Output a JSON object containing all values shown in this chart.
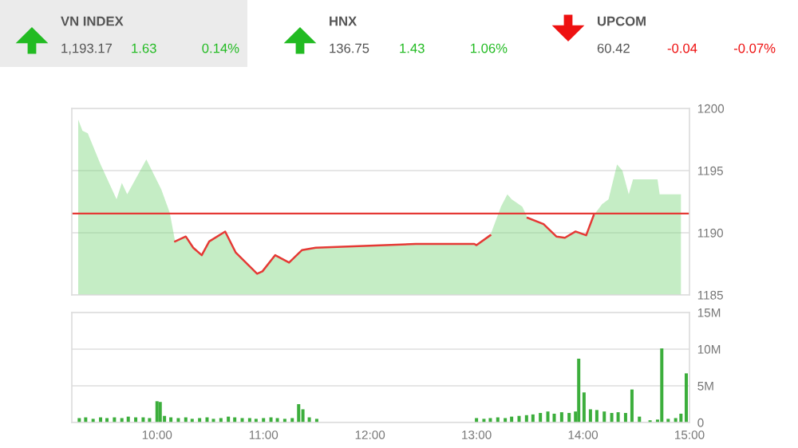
{
  "chart_data": [
    {
      "type": "other",
      "annotations": [
        "VN INDEX",
        "1,193.17",
        "1.63",
        "0.14%",
        "HNX",
        "136.75",
        "1.43",
        "1.06%",
        "UPCOM",
        "60.42",
        "-0.04",
        "-0.07%"
      ],
      "colors": [
        "#22bb22",
        "#22bb22",
        "#ee1111"
      ]
    },
    {
      "type": "area",
      "tick_labels": "y",
      "grid": "y",
      "xlim": [
        9.2,
        15.0
      ],
      "ylim": [
        1185,
        1200
      ],
      "yticks": [
        1185,
        1190,
        1195,
        1200
      ],
      "ref_lines": [
        {
          "axis": "y",
          "value": 1191.54,
          "color": "#e53935"
        }
      ],
      "series": [
        {
          "color": "#7ed67e",
          "x": [
            9.26,
            9.3,
            9.35,
            9.47,
            9.62,
            9.67,
            9.72,
            9.9,
            10.04,
            10.12,
            10.17,
            10.27,
            10.34,
            10.42,
            10.49,
            10.64,
            10.74,
            10.94,
            10.99,
            11.11,
            11.24,
            11.36,
            11.49,
            12.43,
            12.98,
            13.0,
            13.13,
            13.23,
            13.29,
            13.33,
            13.43,
            13.48,
            13.63,
            13.75,
            13.83,
            13.93,
            14.03,
            14.1,
            14.18,
            14.24,
            14.32,
            14.37,
            14.43,
            14.47,
            14.7,
            14.72,
            14.92
          ],
          "values": [
            1199.1,
            1198.2,
            1198.0,
            1195.5,
            1192.7,
            1194.0,
            1193.1,
            1195.9,
            1193.5,
            1191.6,
            1189.3,
            1189.7,
            1188.8,
            1188.2,
            1189.3,
            1190.1,
            1188.4,
            1186.7,
            1186.9,
            1188.2,
            1187.6,
            1188.6,
            1188.8,
            1189.1,
            1189.1,
            1189.0,
            1189.8,
            1192.1,
            1193.1,
            1192.7,
            1192.1,
            1191.2,
            1190.7,
            1189.7,
            1189.6,
            1190.1,
            1189.8,
            1191.4,
            1192.3,
            1192.7,
            1195.5,
            1195.0,
            1193.1,
            1194.3,
            1194.3,
            1193.1,
            1193.1
          ]
        },
        {
          "type": "line",
          "color": "#e53935",
          "x": [
            10.17,
            10.27,
            10.34,
            10.42,
            10.49,
            10.64,
            10.74,
            10.94,
            10.99,
            11.11,
            11.24,
            11.36,
            11.49,
            12.43,
            12.98,
            13.0,
            13.13,
            13.3,
            13.48,
            13.63,
            13.75,
            13.83,
            13.93,
            14.03,
            14.1
          ],
          "values": [
            1189.3,
            1189.7,
            1188.8,
            1188.2,
            1189.3,
            1190.1,
            1188.4,
            1186.7,
            1186.9,
            1188.2,
            1187.6,
            1188.6,
            1188.8,
            1189.1,
            1189.1,
            1189.0,
            1189.8,
            null,
            1191.2,
            1190.7,
            1189.7,
            1189.6,
            1190.1,
            1189.8,
            1191.4
          ]
        }
      ]
    },
    {
      "type": "bar",
      "grid": "y",
      "xlim": [
        9.2,
        15.0
      ],
      "ylim": [
        0,
        15
      ],
      "yticks": [
        {
          "value": 0,
          "label": "0"
        },
        {
          "value": 5,
          "label": "5M"
        },
        {
          "value": 10,
          "label": "10M"
        },
        {
          "value": 15,
          "label": "15M"
        }
      ],
      "xticks": [
        {
          "value": 10,
          "label": "10:00"
        },
        {
          "value": 11,
          "label": "11:00"
        },
        {
          "value": 12,
          "label": "12:00"
        },
        {
          "value": 13,
          "label": "13:00"
        },
        {
          "value": 14,
          "label": "14:00"
        },
        {
          "value": 15,
          "label": "15:00"
        }
      ],
      "series": [
        {
          "color": "#3cae3c",
          "x": [
            9.27,
            9.33,
            9.4,
            9.47,
            9.53,
            9.6,
            9.67,
            9.73,
            9.8,
            9.87,
            9.93,
            10.0,
            10.03,
            10.07,
            10.13,
            10.2,
            10.27,
            10.33,
            10.4,
            10.47,
            10.53,
            10.6,
            10.67,
            10.73,
            10.8,
            10.87,
            10.93,
            11.0,
            11.07,
            11.13,
            11.2,
            11.27,
            11.33,
            11.37,
            11.43,
            11.5,
            13.0,
            13.07,
            13.13,
            13.2,
            13.27,
            13.33,
            13.4,
            13.47,
            13.53,
            13.6,
            13.67,
            13.73,
            13.8,
            13.87,
            13.93,
            13.96,
            14.01,
            14.07,
            14.13,
            14.2,
            14.27,
            14.33,
            14.4,
            14.46,
            14.53,
            14.63,
            14.7,
            14.74,
            14.8,
            14.87,
            14.92,
            14.97
          ],
          "values": [
            0.6,
            0.7,
            0.5,
            0.7,
            0.6,
            0.7,
            0.6,
            0.8,
            0.7,
            0.7,
            0.6,
            2.9,
            2.8,
            0.9,
            0.7,
            0.6,
            0.7,
            0.5,
            0.6,
            0.7,
            0.5,
            0.6,
            0.8,
            0.7,
            0.6,
            0.6,
            0.5,
            0.6,
            0.7,
            0.6,
            0.5,
            0.6,
            2.5,
            1.8,
            0.7,
            0.5,
            0.6,
            0.5,
            0.6,
            0.7,
            0.6,
            0.8,
            0.9,
            1.0,
            1.1,
            1.3,
            1.5,
            1.2,
            1.4,
            1.3,
            1.5,
            8.7,
            4.1,
            1.8,
            1.7,
            1.5,
            1.3,
            1.4,
            1.3,
            4.5,
            0.8,
            0.3,
            0.4,
            10.1,
            0.5,
            0.6,
            1.2,
            6.7
          ]
        }
      ]
    }
  ]
}
